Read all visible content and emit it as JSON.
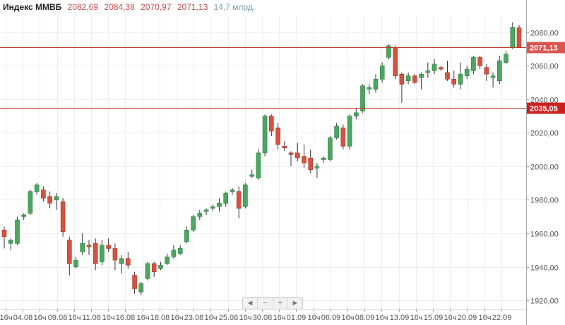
{
  "header": {
    "instrument": "Индекс ММВБ",
    "open": "2082,69",
    "high": "2084,38",
    "low": "2070,97",
    "close": "2071,13",
    "volume": "14,7 млрд."
  },
  "navigator": {
    "buttons": [
      "◄",
      "−",
      "+",
      "►"
    ]
  },
  "colors": {
    "up": "#4ca65f",
    "down": "#d65240",
    "line": "#c0392b",
    "grid": "#eceef2",
    "label_bg": "#cc1f1f"
  },
  "chart_data": {
    "type": "candlestick",
    "ylim": [
      1915,
      2090
    ],
    "yticks": [
      1920,
      1940,
      1960,
      1980,
      2000,
      2020,
      2040,
      2060,
      2080
    ],
    "ytick_labels": [
      "1920,00",
      "1940,00",
      "1960,00",
      "1980,00",
      "2000,00",
      "2020,00",
      "2040,00",
      "2060,00",
      "2080,00"
    ],
    "xtick_labels": [
      "16ч",
      "04.08",
      "16ч",
      "09.08",
      "16ч",
      "11.08",
      "16ч",
      "16.08",
      "16ч",
      "18.08",
      "16ч",
      "23.08",
      "16ч",
      "25.08",
      "16ч",
      "30.08",
      "16ч",
      "01.09",
      "16ч",
      "06.09",
      "16ч",
      "08.09",
      "16ч",
      "13.09",
      "16ч",
      "15.09",
      "16ч",
      "20.09",
      "16ч",
      "22.09"
    ],
    "hlines": [
      {
        "value": 2071.13,
        "label": "2071,13"
      },
      {
        "value": 2035.05,
        "label": "2035,05"
      }
    ],
    "candles": [
      {
        "o": 1962,
        "h": 1964,
        "l": 1951,
        "c": 1958
      },
      {
        "o": 1954,
        "h": 1957,
        "l": 1950,
        "c": 1956
      },
      {
        "o": 1954,
        "h": 1970,
        "l": 1953,
        "c": 1968
      },
      {
        "o": 1970,
        "h": 1972,
        "l": 1968,
        "c": 1971
      },
      {
        "o": 1972,
        "h": 1986,
        "l": 1971,
        "c": 1985
      },
      {
        "o": 1985,
        "h": 1990,
        "l": 1983,
        "c": 1989
      },
      {
        "o": 1986,
        "h": 1988,
        "l": 1979,
        "c": 1981
      },
      {
        "o": 1982,
        "h": 1985,
        "l": 1975,
        "c": 1978
      },
      {
        "o": 1980,
        "h": 1984,
        "l": 1974,
        "c": 1982
      },
      {
        "o": 1979,
        "h": 1981,
        "l": 1958,
        "c": 1961
      },
      {
        "o": 1956,
        "h": 1958,
        "l": 1935,
        "c": 1942
      },
      {
        "o": 1940,
        "h": 1946,
        "l": 1939,
        "c": 1944
      },
      {
        "o": 1949,
        "h": 1960,
        "l": 1947,
        "c": 1954
      },
      {
        "o": 1953,
        "h": 1956,
        "l": 1947,
        "c": 1952
      },
      {
        "o": 1954,
        "h": 1957,
        "l": 1938,
        "c": 1942
      },
      {
        "o": 1943,
        "h": 1956,
        "l": 1941,
        "c": 1953
      },
      {
        "o": 1953,
        "h": 1957,
        "l": 1949,
        "c": 1951
      },
      {
        "o": 1951,
        "h": 1954,
        "l": 1938,
        "c": 1944
      },
      {
        "o": 1942,
        "h": 1947,
        "l": 1936,
        "c": 1945
      },
      {
        "o": 1945,
        "h": 1949,
        "l": 1939,
        "c": 1941
      },
      {
        "o": 1935,
        "h": 1937,
        "l": 1924,
        "c": 1927
      },
      {
        "o": 1925,
        "h": 1931,
        "l": 1923,
        "c": 1930
      },
      {
        "o": 1933,
        "h": 1943,
        "l": 1932,
        "c": 1942
      },
      {
        "o": 1942,
        "h": 1943,
        "l": 1934,
        "c": 1937
      },
      {
        "o": 1939,
        "h": 1943,
        "l": 1938,
        "c": 1941
      },
      {
        "o": 1942,
        "h": 1948,
        "l": 1941,
        "c": 1946
      },
      {
        "o": 1946,
        "h": 1953,
        "l": 1945,
        "c": 1950
      },
      {
        "o": 1948,
        "h": 1953,
        "l": 1947,
        "c": 1951
      },
      {
        "o": 1955,
        "h": 1964,
        "l": 1954,
        "c": 1962
      },
      {
        "o": 1962,
        "h": 1971,
        "l": 1961,
        "c": 1970
      },
      {
        "o": 1970,
        "h": 1974,
        "l": 1968,
        "c": 1972
      },
      {
        "o": 1973,
        "h": 1975,
        "l": 1971,
        "c": 1974
      },
      {
        "o": 1975,
        "h": 1977,
        "l": 1973,
        "c": 1976
      },
      {
        "o": 1976,
        "h": 1981,
        "l": 1973,
        "c": 1978
      },
      {
        "o": 1978,
        "h": 1985,
        "l": 1976,
        "c": 1984
      },
      {
        "o": 1985,
        "h": 1987,
        "l": 1983,
        "c": 1986
      },
      {
        "o": 1985,
        "h": 1988,
        "l": 1969,
        "c": 1975
      },
      {
        "o": 1976,
        "h": 1990,
        "l": 1975,
        "c": 1989
      },
      {
        "o": 1994,
        "h": 1998,
        "l": 1993,
        "c": 1995
      },
      {
        "o": 1993,
        "h": 2010,
        "l": 1992,
        "c": 2008
      },
      {
        "o": 2008,
        "h": 2031,
        "l": 2006,
        "c": 2030
      },
      {
        "o": 2030,
        "h": 2031,
        "l": 2018,
        "c": 2021
      },
      {
        "o": 2023,
        "h": 2026,
        "l": 2010,
        "c": 2013
      },
      {
        "o": 2012,
        "h": 2015,
        "l": 2009,
        "c": 2011
      },
      {
        "o": 2008,
        "h": 2009,
        "l": 2000,
        "c": 2007
      },
      {
        "o": 2008,
        "h": 2014,
        "l": 2003,
        "c": 2005
      },
      {
        "o": 2006,
        "h": 2013,
        "l": 1999,
        "c": 2002
      },
      {
        "o": 2005,
        "h": 2010,
        "l": 1996,
        "c": 1998
      },
      {
        "o": 1999,
        "h": 2002,
        "l": 1993,
        "c": 2000
      },
      {
        "o": 2004,
        "h": 2006,
        "l": 2002,
        "c": 2005
      },
      {
        "o": 2004,
        "h": 2018,
        "l": 2003,
        "c": 2017
      },
      {
        "o": 2017,
        "h": 2026,
        "l": 2016,
        "c": 2024
      },
      {
        "o": 2023,
        "h": 2025,
        "l": 2010,
        "c": 2012
      },
      {
        "o": 2012,
        "h": 2031,
        "l": 2010,
        "c": 2030
      },
      {
        "o": 2030,
        "h": 2035,
        "l": 2028,
        "c": 2032
      },
      {
        "o": 2033,
        "h": 2049,
        "l": 2032,
        "c": 2048
      },
      {
        "o": 2046,
        "h": 2049,
        "l": 2043,
        "c": 2047
      },
      {
        "o": 2046,
        "h": 2055,
        "l": 2044,
        "c": 2052
      },
      {
        "o": 2052,
        "h": 2062,
        "l": 2050,
        "c": 2060
      },
      {
        "o": 2065,
        "h": 2073,
        "l": 2064,
        "c": 2072
      },
      {
        "o": 2071,
        "h": 2072,
        "l": 2052,
        "c": 2054
      },
      {
        "o": 2055,
        "h": 2056,
        "l": 2038,
        "c": 2049
      },
      {
        "o": 2051,
        "h": 2056,
        "l": 2049,
        "c": 2054
      },
      {
        "o": 2054,
        "h": 2055,
        "l": 2049,
        "c": 2050
      },
      {
        "o": 2053,
        "h": 2056,
        "l": 2046,
        "c": 2055
      },
      {
        "o": 2056,
        "h": 2062,
        "l": 2053,
        "c": 2057
      },
      {
        "o": 2057,
        "h": 2064,
        "l": 2055,
        "c": 2061
      },
      {
        "o": 2059,
        "h": 2060,
        "l": 2057,
        "c": 2058
      },
      {
        "o": 2056,
        "h": 2063,
        "l": 2051,
        "c": 2052
      },
      {
        "o": 2052,
        "h": 2057,
        "l": 2047,
        "c": 2049
      },
      {
        "o": 2049,
        "h": 2062,
        "l": 2046,
        "c": 2055
      },
      {
        "o": 2054,
        "h": 2060,
        "l": 2052,
        "c": 2058
      },
      {
        "o": 2057,
        "h": 2066,
        "l": 2055,
        "c": 2065
      },
      {
        "o": 2065,
        "h": 2066,
        "l": 2058,
        "c": 2060
      },
      {
        "o": 2059,
        "h": 2061,
        "l": 2051,
        "c": 2055
      },
      {
        "o": 2053,
        "h": 2056,
        "l": 2047,
        "c": 2054
      },
      {
        "o": 2051,
        "h": 2066,
        "l": 2049,
        "c": 2063
      },
      {
        "o": 2062,
        "h": 2069,
        "l": 2061,
        "c": 2067
      },
      {
        "o": 2071,
        "h": 2086,
        "l": 2070,
        "c": 2083
      },
      {
        "o": 2082.69,
        "h": 2084.38,
        "l": 2070.97,
        "c": 2071.13
      }
    ]
  }
}
